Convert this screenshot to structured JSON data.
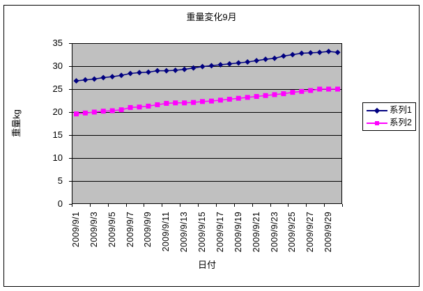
{
  "chart_data": {
    "type": "line",
    "title": "重量変化9月",
    "xlabel": "日付",
    "ylabel": "重量kg",
    "ylim": [
      0,
      35
    ],
    "ytick_step": 5,
    "y_tick_labels": [
      "0",
      "5",
      "10",
      "15",
      "20",
      "25",
      "30",
      "35"
    ],
    "grid": "horizontal-on",
    "plot_bg": "#c0c0c0",
    "gridline_color": "#000000",
    "legend_position": "right",
    "categories": [
      "2009/9/1",
      "2009/9/2",
      "2009/9/3",
      "2009/9/4",
      "2009/9/5",
      "2009/9/6",
      "2009/9/7",
      "2009/9/8",
      "2009/9/9",
      "2009/9/10",
      "2009/9/11",
      "2009/9/12",
      "2009/9/13",
      "2009/9/14",
      "2009/9/15",
      "2009/9/16",
      "2009/9/17",
      "2009/9/18",
      "2009/9/19",
      "2009/9/20",
      "2009/9/21",
      "2009/9/22",
      "2009/9/23",
      "2009/9/24",
      "2009/9/25",
      "2009/9/26",
      "2009/9/27",
      "2009/9/28",
      "2009/9/29",
      "2009/9/30"
    ],
    "x_tick_labels": [
      "2009/9/1",
      "2009/9/3",
      "2009/9/5",
      "2009/9/7",
      "2009/9/9",
      "2009/9/11",
      "2009/9/13",
      "2009/9/15",
      "2009/9/17",
      "2009/9/19",
      "2009/9/21",
      "2009/9/23",
      "2009/9/25",
      "2009/9/27",
      "2009/9/29"
    ],
    "series": [
      {
        "name": "系列1",
        "color": "#000080",
        "marker": "diamond",
        "values": [
          26.8,
          27.0,
          27.2,
          27.5,
          27.7,
          28.0,
          28.4,
          28.6,
          28.7,
          29.0,
          29.0,
          29.1,
          29.3,
          29.6,
          29.9,
          30.1,
          30.3,
          30.5,
          30.7,
          30.9,
          31.2,
          31.5,
          31.7,
          32.2,
          32.5,
          32.8,
          32.9,
          33.0,
          33.2,
          33.0
        ]
      },
      {
        "name": "系列2",
        "color": "#ff00ff",
        "marker": "square",
        "values": [
          19.6,
          19.8,
          20.0,
          20.2,
          20.3,
          20.5,
          21.0,
          21.1,
          21.3,
          21.6,
          21.9,
          22.0,
          22.0,
          22.1,
          22.3,
          22.4,
          22.6,
          22.8,
          23.0,
          23.2,
          23.4,
          23.6,
          23.8,
          24.0,
          24.3,
          24.5,
          24.7,
          25.0,
          25.0,
          25.0
        ]
      }
    ]
  }
}
